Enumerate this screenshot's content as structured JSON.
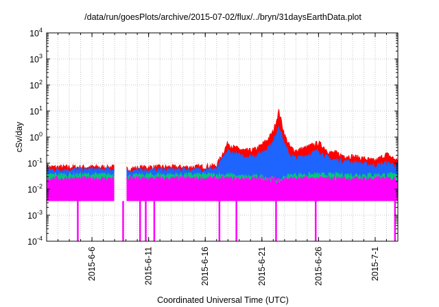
{
  "chart_data": {
    "type": "line",
    "title": "/data/run/goesPlots/archive/2015-07-02/flux/../bryn/31daysEarthData.plot",
    "xlabel": "Coordinated Universal Time (UTC)",
    "ylabel": "cSv/day",
    "yscale": "log",
    "ylim": [
      0.0001,
      10000
    ],
    "xlim": [
      "2015-06-02",
      "2015-07-03"
    ],
    "grid": true,
    "legend": "none",
    "y_ticks": [
      {
        "base": "10",
        "exp": "-4"
      },
      {
        "base": "10",
        "exp": "-3"
      },
      {
        "base": "10",
        "exp": "-2"
      },
      {
        "base": "10",
        "exp": "-1"
      },
      {
        "base": "10",
        "exp": "0"
      },
      {
        "base": "10",
        "exp": "1"
      },
      {
        "base": "10",
        "exp": "2"
      },
      {
        "base": "10",
        "exp": "3"
      },
      {
        "base": "10",
        "exp": "4"
      }
    ],
    "x_ticks": [
      "2015-6-6",
      "2015-6-11",
      "2015-6-16",
      "2015-6-21",
      "2015-6-26",
      "2015-7-1"
    ],
    "x_tick_dates": [
      "2015-06-06",
      "2015-06-11",
      "2015-06-16",
      "2015-06-21",
      "2015-06-26",
      "2015-07-01"
    ],
    "data_gaps": [
      [
        "2015-06-08",
        "2015-06-09"
      ]
    ],
    "series": [
      {
        "color": "#ff0000",
        "x": [
          "2015-06-02",
          "2015-06-04",
          "2015-06-06",
          "2015-06-08",
          "2015-06-09",
          "2015-06-11",
          "2015-06-13",
          "2015-06-15",
          "2015-06-17",
          "2015-06-18",
          "2015-06-18T12",
          "2015-06-19",
          "2015-06-19T12",
          "2015-06-20",
          "2015-06-20T12",
          "2015-06-21",
          "2015-06-21T12",
          "2015-06-22",
          "2015-06-22T12",
          "2015-06-23",
          "2015-06-23T12",
          "2015-06-24",
          "2015-06-25",
          "2015-06-25T12",
          "2015-06-26",
          "2015-06-26T12",
          "2015-06-27",
          "2015-06-27T12",
          "2015-06-28",
          "2015-06-29",
          "2015-06-30",
          "2015-07-01",
          "2015-07-02",
          "2015-07-03"
        ],
        "values": [
          0.07,
          0.07,
          0.07,
          0.07,
          0.06,
          0.07,
          0.07,
          0.07,
          0.08,
          0.6,
          0.4,
          0.35,
          0.3,
          0.3,
          0.35,
          0.5,
          0.8,
          1.6,
          10,
          1.2,
          0.4,
          0.3,
          0.4,
          0.5,
          0.6,
          0.4,
          0.25,
          0.25,
          0.2,
          0.18,
          0.15,
          0.12,
          0.22,
          0.12
        ]
      },
      {
        "color": "#1e64ff",
        "x": [
          "2015-06-02",
          "2015-06-04",
          "2015-06-06",
          "2015-06-08",
          "2015-06-09",
          "2015-06-11",
          "2015-06-13",
          "2015-06-15",
          "2015-06-17",
          "2015-06-18",
          "2015-06-18T12",
          "2015-06-19",
          "2015-06-19T12",
          "2015-06-20",
          "2015-06-20T12",
          "2015-06-21",
          "2015-06-21T12",
          "2015-06-22",
          "2015-06-22T12",
          "2015-06-23",
          "2015-06-23T12",
          "2015-06-24",
          "2015-06-25",
          "2015-06-25T12",
          "2015-06-26",
          "2015-06-26T12",
          "2015-06-27",
          "2015-06-27T12",
          "2015-06-28",
          "2015-06-29",
          "2015-06-30",
          "2015-07-01",
          "2015-07-02",
          "2015-07-03"
        ],
        "values": [
          0.055,
          0.055,
          0.055,
          0.055,
          0.05,
          0.055,
          0.055,
          0.055,
          0.06,
          0.3,
          0.22,
          0.2,
          0.18,
          0.18,
          0.2,
          0.25,
          0.4,
          0.6,
          3,
          0.5,
          0.2,
          0.15,
          0.2,
          0.25,
          0.3,
          0.2,
          0.14,
          0.13,
          0.12,
          0.11,
          0.09,
          0.08,
          0.1,
          0.08
        ]
      },
      {
        "color": "#00c87a",
        "x": [
          "2015-06-02",
          "2015-06-04",
          "2015-06-06",
          "2015-06-08",
          "2015-06-09",
          "2015-06-11",
          "2015-06-13",
          "2015-06-15",
          "2015-06-17",
          "2015-06-18",
          "2015-06-19",
          "2015-06-20",
          "2015-06-21",
          "2015-06-22",
          "2015-06-22T12",
          "2015-06-23",
          "2015-06-24",
          "2015-06-26",
          "2015-06-28",
          "2015-06-30",
          "2015-07-02",
          "2015-07-03"
        ],
        "values": [
          0.035,
          0.035,
          0.035,
          0.035,
          0.03,
          0.035,
          0.035,
          0.035,
          0.035,
          0.035,
          0.03,
          0.03,
          0.03,
          0.025,
          0.02,
          0.03,
          0.035,
          0.035,
          0.035,
          0.035,
          0.035,
          0.035
        ]
      },
      {
        "color": "#ff00ff",
        "x": [
          "2015-06-02",
          "2015-06-04",
          "2015-06-06",
          "2015-06-08",
          "2015-06-09",
          "2015-06-11",
          "2015-06-13",
          "2015-06-15",
          "2015-06-17",
          "2015-06-19",
          "2015-06-21",
          "2015-06-23",
          "2015-06-25",
          "2015-06-27",
          "2015-06-29",
          "2015-07-01",
          "2015-07-03"
        ],
        "values": [
          0.025,
          0.025,
          0.025,
          0.025,
          0.025,
          0.025,
          0.025,
          0.025,
          0.025,
          0.025,
          0.025,
          0.025,
          0.025,
          0.025,
          0.025,
          0.025,
          0.025
        ],
        "drops": [
          "2015-06-04T18",
          "2015-06-08T18",
          "2015-06-10T06",
          "2015-06-10T18",
          "2015-06-11T12",
          "2015-06-17T06",
          "2015-06-18T18",
          "2015-06-22T06",
          "2015-06-25T18",
          "2015-07-02T18"
        ]
      }
    ]
  }
}
